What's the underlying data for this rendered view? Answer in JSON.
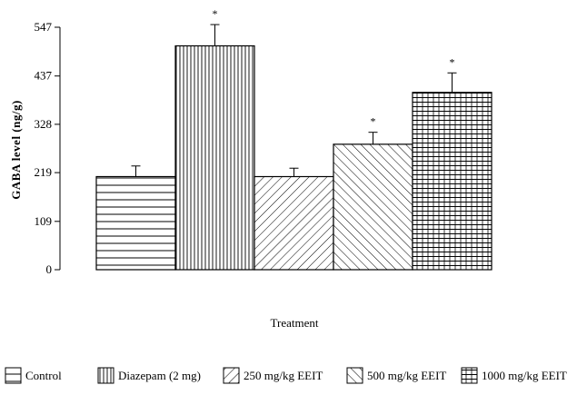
{
  "chart_data": {
    "type": "bar",
    "title": "",
    "xlabel": "Treatment",
    "ylabel": "GABA level (ng/g)",
    "ylim": [
      0,
      547
    ],
    "yticks": [
      "0",
      "109",
      "219",
      "328",
      "437",
      "547"
    ],
    "ytick_values": [
      0,
      109,
      219,
      328,
      437,
      547
    ],
    "categories": [
      "Control",
      "Diazepam (2 mg)",
      "250 mg/kg EEIT",
      "500 mg/kg EEIT",
      "1000 mg/kg EEIT"
    ],
    "values": [
      210,
      505,
      210,
      283,
      400
    ],
    "errors": [
      24,
      48,
      19,
      27,
      44
    ],
    "significance": [
      "",
      "*",
      "",
      "*",
      "*"
    ],
    "patterns": [
      "horizontal",
      "vertical",
      "diagonal-back",
      "diagonal-forward",
      "grid"
    ],
    "legend_position": "bottom",
    "grid": false
  }
}
